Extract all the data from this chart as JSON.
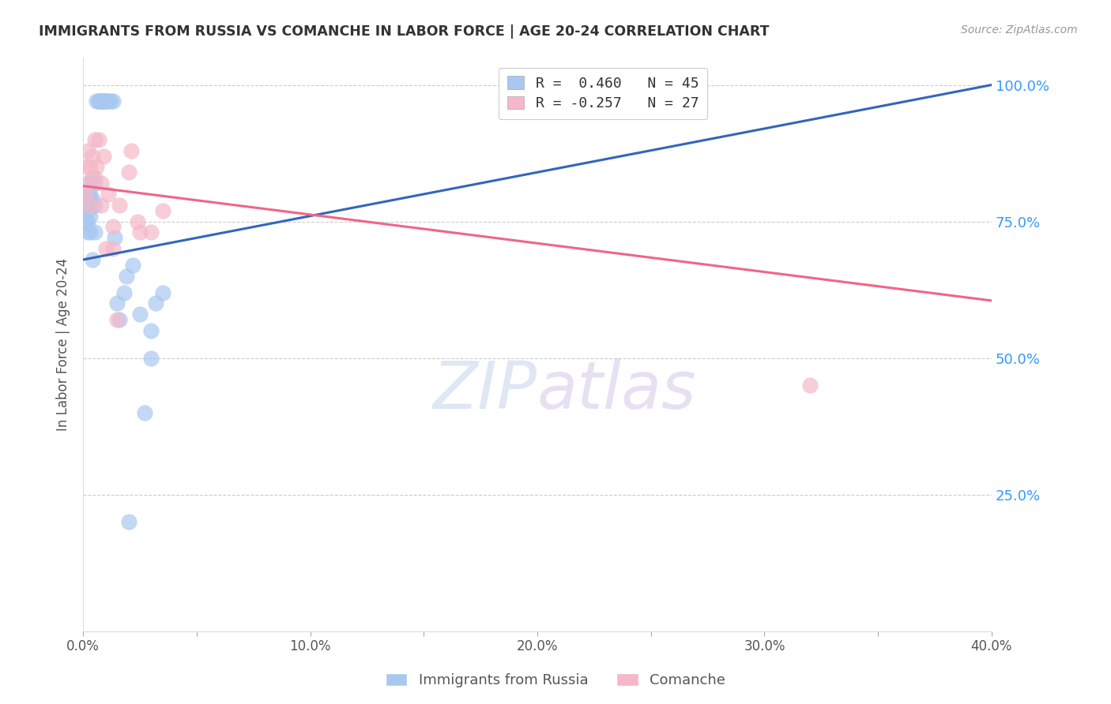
{
  "title": "IMMIGRANTS FROM RUSSIA VS COMANCHE IN LABOR FORCE | AGE 20-24 CORRELATION CHART",
  "source": "Source: ZipAtlas.com",
  "ylabel": "In Labor Force | Age 20-24",
  "xmin": 0.0,
  "xmax": 0.4,
  "ymin": 0.0,
  "ymax": 1.05,
  "yticks": [
    0.0,
    0.25,
    0.5,
    0.75,
    1.0
  ],
  "ytick_labels": [
    "",
    "25.0%",
    "50.0%",
    "75.0%",
    "100.0%"
  ],
  "xticks": [
    0.0,
    0.05,
    0.1,
    0.15,
    0.2,
    0.25,
    0.3,
    0.35,
    0.4
  ],
  "xtick_labels": [
    "0.0%",
    "",
    "10.0%",
    "",
    "20.0%",
    "",
    "30.0%",
    "",
    "40.0%"
  ],
  "legend_bottom_labels": [
    "Immigrants from Russia",
    "Comanche"
  ],
  "blue_R": "0.460",
  "blue_N": "45",
  "pink_R": "-0.257",
  "pink_N": "27",
  "blue_color": "#A8C8F0",
  "pink_color": "#F5B8C8",
  "blue_line_color": "#3366BB",
  "pink_line_color": "#EE6688",
  "russia_x": [
    0.001,
    0.001,
    0.001,
    0.002,
    0.002,
    0.002,
    0.002,
    0.002,
    0.003,
    0.003,
    0.003,
    0.003,
    0.003,
    0.004,
    0.004,
    0.004,
    0.005,
    0.005,
    0.005,
    0.006,
    0.007,
    0.007,
    0.008,
    0.008,
    0.008,
    0.009,
    0.009,
    0.01,
    0.01,
    0.011,
    0.012,
    0.013,
    0.014,
    0.015,
    0.016,
    0.018,
    0.019,
    0.02,
    0.022,
    0.025,
    0.027,
    0.03,
    0.03,
    0.032,
    0.035
  ],
  "russia_y": [
    0.8,
    0.78,
    0.75,
    0.8,
    0.79,
    0.77,
    0.75,
    0.73,
    0.82,
    0.8,
    0.78,
    0.76,
    0.73,
    0.83,
    0.79,
    0.68,
    0.82,
    0.78,
    0.73,
    0.97,
    0.97,
    0.97,
    0.97,
    0.97,
    0.97,
    0.97,
    0.97,
    0.97,
    0.97,
    0.97,
    0.97,
    0.97,
    0.72,
    0.6,
    0.57,
    0.62,
    0.65,
    0.2,
    0.67,
    0.58,
    0.4,
    0.55,
    0.5,
    0.6,
    0.62
  ],
  "comanche_x": [
    0.001,
    0.001,
    0.002,
    0.002,
    0.003,
    0.003,
    0.004,
    0.005,
    0.005,
    0.006,
    0.007,
    0.008,
    0.008,
    0.009,
    0.01,
    0.011,
    0.013,
    0.013,
    0.015,
    0.016,
    0.02,
    0.021,
    0.024,
    0.025,
    0.03,
    0.035,
    0.32
  ],
  "comanche_y": [
    0.85,
    0.8,
    0.88,
    0.82,
    0.85,
    0.78,
    0.87,
    0.9,
    0.83,
    0.85,
    0.9,
    0.82,
    0.78,
    0.87,
    0.7,
    0.8,
    0.74,
    0.7,
    0.57,
    0.78,
    0.84,
    0.88,
    0.75,
    0.73,
    0.73,
    0.77,
    0.45
  ],
  "blue_trend_x0": 0.0,
  "blue_trend_y0": 0.68,
  "blue_trend_x1": 0.4,
  "blue_trend_y1": 1.0,
  "pink_trend_x0": 0.0,
  "pink_trend_y0": 0.815,
  "pink_trend_x1": 0.4,
  "pink_trend_y1": 0.605,
  "background_color": "#FFFFFF",
  "watermark_zip": "ZIP",
  "watermark_atlas": "atlas",
  "watermark_color_zip": "#C8D8F0",
  "watermark_color_atlas": "#D8C8E8"
}
